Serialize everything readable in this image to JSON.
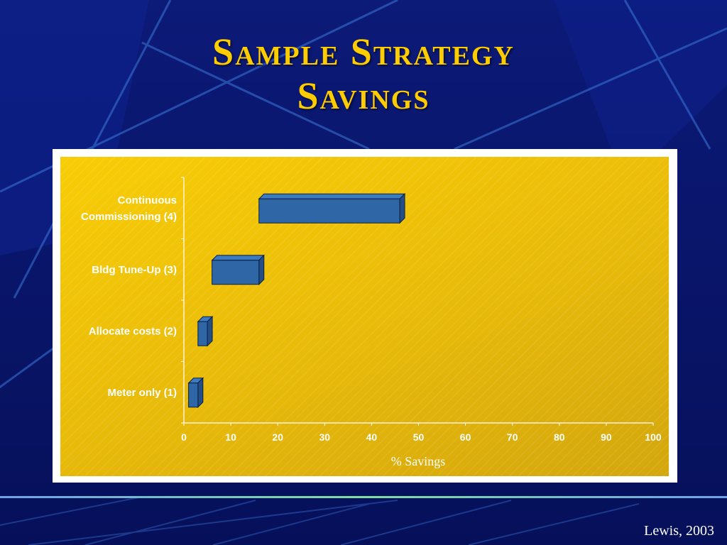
{
  "slide": {
    "title_line1": "Sample Strategy",
    "title_line2": "Savings",
    "credit": "Lewis, 2003"
  },
  "chart_data": {
    "type": "bar",
    "orientation": "horizontal",
    "style": "3d-floating",
    "categories": [
      "Continuous Commissioning (4)",
      "Bldg Tune-Up (3)",
      "Allocate costs (2)",
      "Meter only (1)"
    ],
    "ranges": [
      [
        16,
        46
      ],
      [
        6,
        16
      ],
      [
        3,
        5
      ],
      [
        1,
        3
      ]
    ],
    "xlabel": "% Savings",
    "xlim": [
      0,
      100
    ],
    "xticks": [
      0,
      10,
      20,
      30,
      40,
      50,
      60,
      70,
      80,
      90,
      100
    ],
    "grid": false,
    "legend": "none",
    "colors": {
      "bar": "#2e66a6",
      "bar_top": "#3d7bc0",
      "bar_side": "#234f86",
      "plot_background": "#f0c207",
      "axis_text": "#ffffff",
      "title": "#ffcc00",
      "slide_background": "#0a1670"
    }
  }
}
